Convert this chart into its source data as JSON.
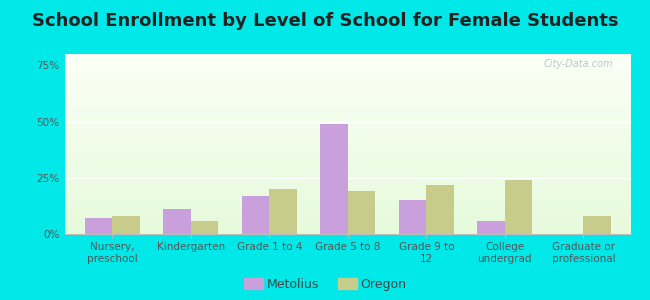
{
  "title": "School Enrollment by Level of School for Female Students",
  "categories": [
    "Nursery,\npreschool",
    "Kindergarten",
    "Grade 1 to 4",
    "Grade 5 to 8",
    "Grade 9 to\n12",
    "College\nundergrad",
    "Graduate or\nprofessional"
  ],
  "metolius": [
    7,
    11,
    17,
    49,
    15,
    6,
    0
  ],
  "oregon": [
    8,
    6,
    20,
    19,
    22,
    24,
    8
  ],
  "metolius_color": "#c9a0dc",
  "oregon_color": "#c8cc8a",
  "background_outer": "#00e8e8",
  "yticks": [
    0,
    25,
    50,
    75
  ],
  "ylim": [
    0,
    80
  ],
  "bar_width": 0.35,
  "title_fontsize": 13,
  "tick_fontsize": 7.5,
  "legend_fontsize": 9,
  "watermark": "City-Data.com"
}
